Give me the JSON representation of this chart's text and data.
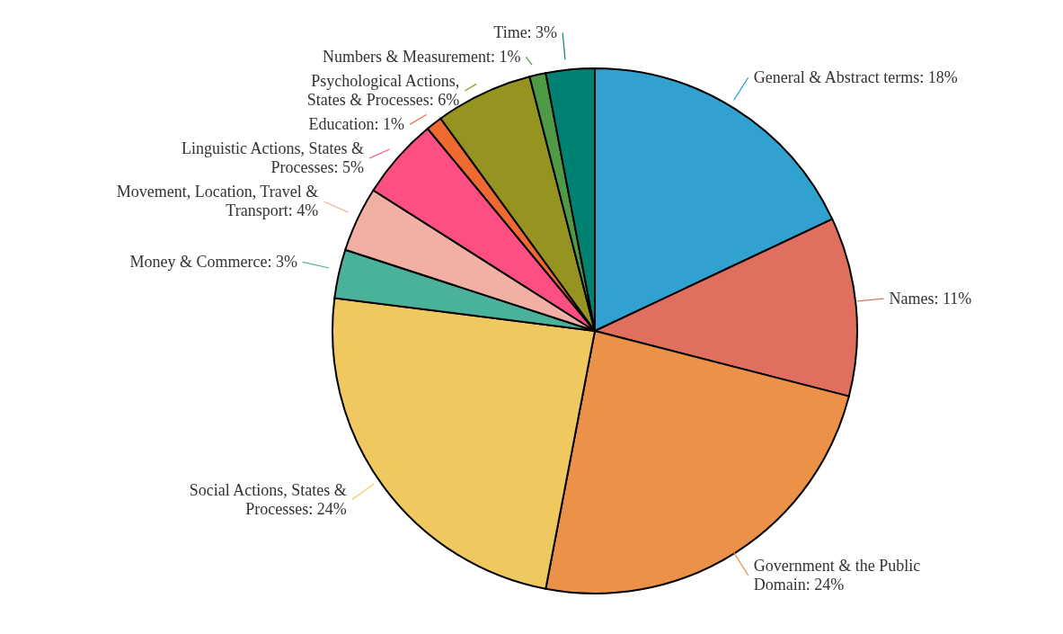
{
  "chart_data": {
    "type": "pie",
    "categories": [
      "General & Abstract terms: 18%",
      "Names: 11%",
      "Government & the Public Domain: 24%",
      "Social Actions, States & Processes: 24%",
      "Money & Commerce: 3%",
      "Movement, Location, Travel & Transport: 4%",
      "Linguistic Actions, States & Processes: 5%",
      "Education: 1%",
      "Psychological Actions, States & Processes: 6%",
      "Numbers & Measurement: 1%",
      "Time: 3%"
    ],
    "values": [
      18,
      11,
      24,
      24,
      3,
      4,
      5,
      1,
      6,
      1,
      3
    ],
    "colors": [
      "#31a2d0",
      "#e06f5f",
      "#ec9248",
      "#efc860",
      "#4ab19b",
      "#f2b0a5",
      "#fe4f82",
      "#ee6a30",
      "#969420",
      "#4f9a45",
      "#008273"
    ],
    "legend": false
  }
}
